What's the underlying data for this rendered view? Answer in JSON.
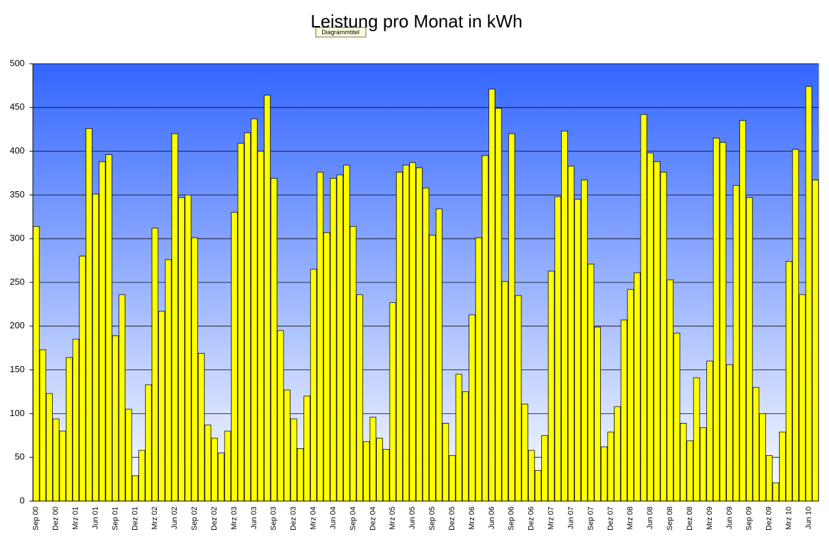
{
  "chart_data": {
    "type": "bar",
    "title": "Leistung pro Monat in kWh",
    "tooltip": "Diagrammtitel",
    "categories": [
      "Sep 00",
      null,
      null,
      "Dez 00",
      null,
      null,
      "Mrz 01",
      null,
      null,
      "Jun 01",
      null,
      null,
      "Sep 01",
      null,
      null,
      "Dez 01",
      null,
      null,
      "Mrz 02",
      null,
      null,
      "Jun 02",
      null,
      null,
      "Sep 02",
      null,
      null,
      "Dez 02",
      null,
      null,
      "Mrz 03",
      null,
      null,
      "Jun 03",
      null,
      null,
      "Sep 03",
      null,
      null,
      "Dez 03",
      null,
      null,
      "Mrz 04",
      null,
      null,
      "Jun 04",
      null,
      null,
      "Sep 04",
      null,
      null,
      "Dez 04",
      null,
      null,
      "Mrz 05",
      null,
      null,
      "Jun 05",
      null,
      null,
      "Sep 05",
      null,
      null,
      "Dez 05",
      null,
      null,
      "Mrz 06",
      null,
      null,
      "Jun 06",
      null,
      null,
      "Sep 06",
      null,
      null,
      "Dez 06",
      null,
      null,
      "Mrz 07",
      null,
      null,
      "Jun 07",
      null,
      null,
      "Sep 07",
      null,
      null,
      "Dez 07",
      null,
      null,
      "Mrz 08",
      null,
      null,
      "Jun 08",
      null,
      null,
      "Sep 08",
      null,
      null,
      "Dez 08",
      null,
      null,
      "Mrz 09",
      null,
      null,
      "Jun 09",
      null,
      null,
      "Sep 09",
      null,
      null,
      "Dez 09",
      null,
      null,
      "Mrz 10",
      null,
      null,
      "Jun 10",
      null
    ],
    "values": [
      314,
      173,
      123,
      94,
      80,
      164,
      185,
      280,
      426,
      351,
      388,
      396,
      189,
      236,
      105,
      29,
      58,
      133,
      312,
      217,
      276,
      420,
      347,
      350,
      301,
      169,
      87,
      72,
      55,
      80,
      330,
      409,
      421,
      437,
      400,
      464,
      369,
      195,
      127,
      94,
      60,
      120,
      265,
      376,
      307,
      369,
      373,
      384,
      314,
      236,
      68,
      96,
      72,
      59,
      227,
      376,
      384,
      387,
      381,
      358,
      304,
      334,
      89,
      52,
      145,
      125,
      213,
      301,
      395,
      471,
      449,
      251,
      420,
      235,
      111,
      58,
      35,
      75,
      263,
      348,
      423,
      383,
      345,
      367,
      271,
      199,
      62,
      79,
      108,
      207,
      242,
      261,
      442,
      398,
      388,
      376,
      253,
      192,
      89,
      69,
      141,
      84,
      160,
      415,
      410,
      156,
      361,
      435,
      347,
      130,
      100,
      52,
      21,
      79,
      274,
      402,
      236,
      474,
      367
    ],
    "color": "#ffff00",
    "ylim": [
      0,
      500
    ],
    "yticks": [
      0,
      50,
      100,
      150,
      200,
      250,
      300,
      350,
      400,
      450,
      500
    ],
    "grid": true
  }
}
